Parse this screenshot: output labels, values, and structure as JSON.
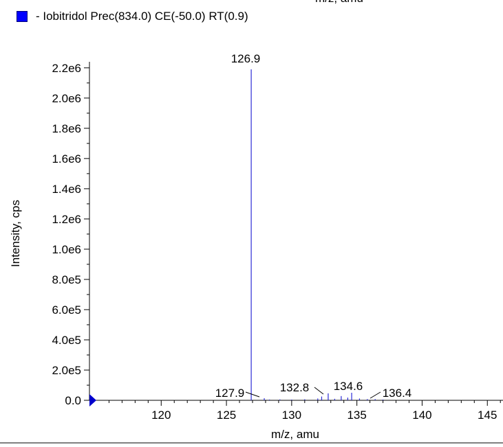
{
  "top_cut_text": "m/z, amu",
  "legend": {
    "swatch_color": "#0000ff",
    "text": "- Iobitridol Prec(834.0) CE(-50.0) RT(0.9)"
  },
  "chart_data": {
    "type": "bar",
    "subtype": "mass-spectrum-stick",
    "title": "",
    "xlabel": "m/z, amu",
    "ylabel": "Intensity, cps",
    "xlim": [
      114.5,
      146.2
    ],
    "ylim": [
      0,
      2240000
    ],
    "x_ticks": [
      120,
      125,
      130,
      135,
      140,
      145
    ],
    "x_tick_labels": [
      "120",
      "125",
      "130",
      "135",
      "140",
      "145"
    ],
    "y_ticks": [
      0,
      200000,
      400000,
      600000,
      800000,
      1000000,
      1200000,
      1400000,
      1600000,
      1800000,
      2000000,
      2200000
    ],
    "y_tick_labels": [
      "0.0",
      "2.0e5",
      "4.0e5",
      "6.0e5",
      "8.0e5",
      "1.0e6",
      "1.2e6",
      "1.4e6",
      "1.6e6",
      "1.8e6",
      "2.0e6",
      "2.2e6"
    ],
    "grid": false,
    "series_color": "#2b2bd6",
    "series": [
      {
        "name": "Iobitridol Prec(834.0) CE(-50.0) RT(0.9)",
        "x": [
          126.9,
          127.9,
          128.3,
          129.1,
          130.0,
          131.0,
          132.0,
          132.3,
          132.8,
          133.3,
          133.8,
          134.3,
          134.6,
          135.2,
          135.8,
          136.4,
          137.0
        ],
        "y": [
          2190000,
          14000,
          5000,
          6000,
          5000,
          7000,
          12000,
          25000,
          46000,
          10000,
          28000,
          18000,
          50000,
          12000,
          8000,
          8000,
          5000
        ]
      }
    ],
    "peak_labels": [
      {
        "text": "126.9",
        "x": 126.9
      },
      {
        "text": "127.9",
        "x": 127.9
      },
      {
        "text": "132.8",
        "x": 132.8
      },
      {
        "text": "134.6",
        "x": 134.6
      },
      {
        "text": "136.4",
        "x": 136.4
      }
    ]
  }
}
